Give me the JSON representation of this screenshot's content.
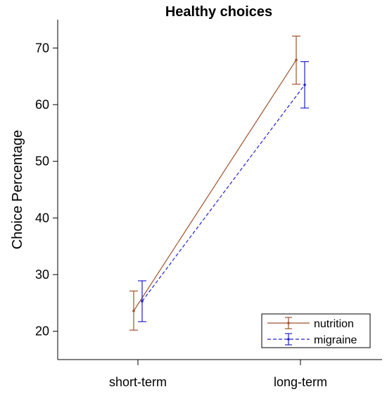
{
  "chart_data": {
    "type": "line",
    "title": "Healthy choices",
    "xlabel": "",
    "ylabel": "Choice Percentage",
    "categories": [
      "short-term",
      "long-term"
    ],
    "ylim": [
      15,
      75
    ],
    "yticks": [
      20,
      30,
      40,
      50,
      60,
      70
    ],
    "grid": false,
    "legend_position": "bottom-right",
    "series": [
      {
        "name": "nutrition",
        "color": "#a0522d",
        "line_style": "solid",
        "values": [
          23.6,
          67.9
        ],
        "error_low": [
          20.2,
          63.6
        ],
        "error_high": [
          27.1,
          72.1
        ]
      },
      {
        "name": "migraine",
        "color": "#2222cc",
        "line_style": "dashed",
        "values": [
          25.3,
          63.5
        ],
        "error_low": [
          21.7,
          59.4
        ],
        "error_high": [
          28.9,
          67.6
        ]
      }
    ]
  }
}
